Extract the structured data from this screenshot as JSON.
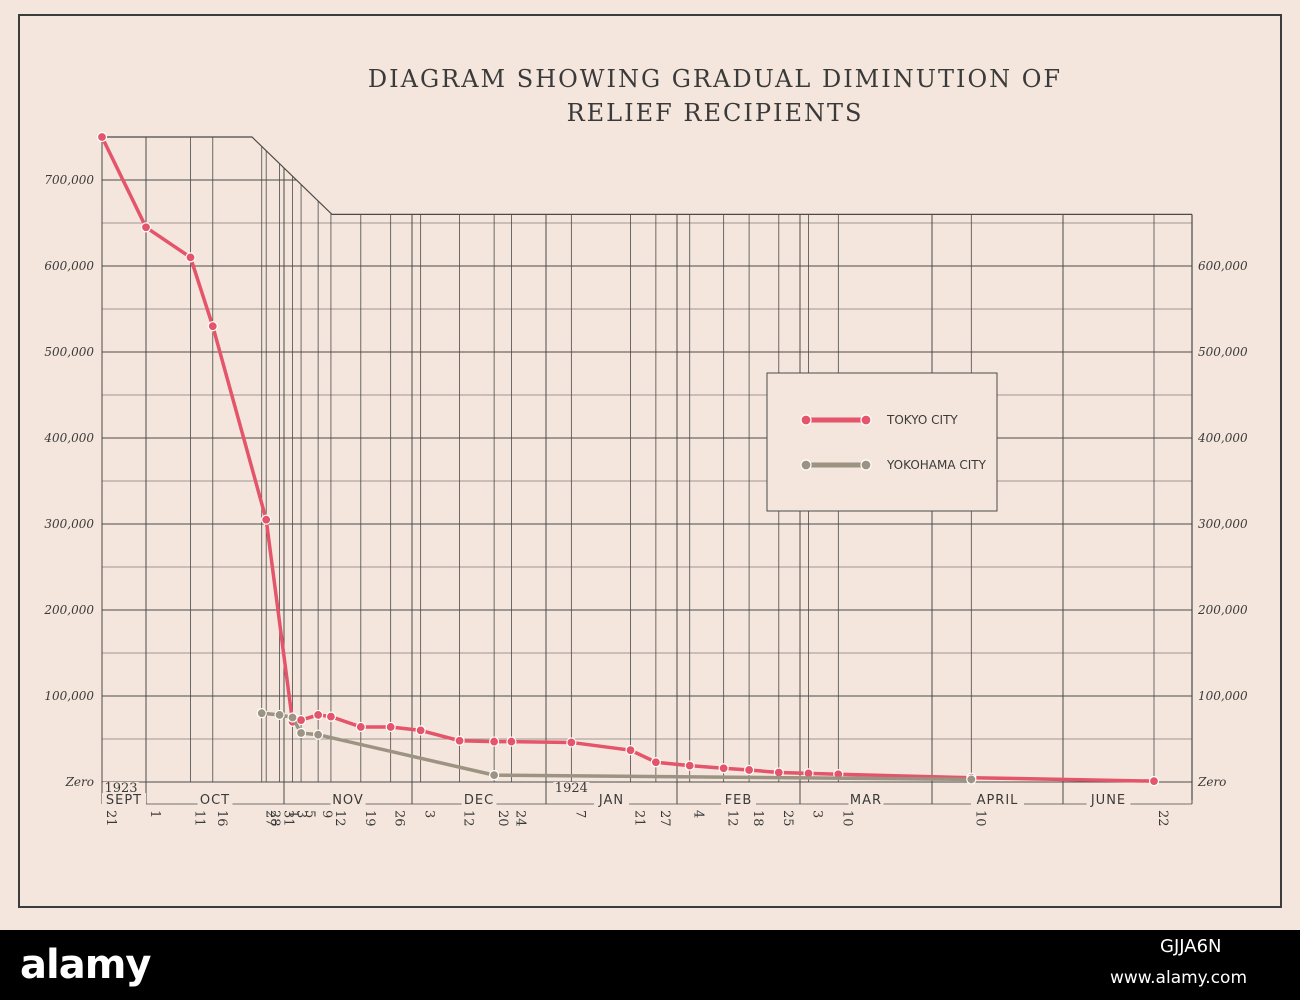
{
  "title_line1": "DIAGRAM SHOWING GRADUAL DIMINUTION OF",
  "title_line2": "RELIEF RECIPIENTS",
  "colors": {
    "tokyo": "#e4546a",
    "yokohama": "#9c9382",
    "grid": "#4a4a4a",
    "paper": "#f4e6dc"
  },
  "watermark": {
    "brand": "alamy",
    "code": "GJJA6N",
    "url": "www.alamy.com"
  },
  "chart_data": {
    "type": "line",
    "title": "DIAGRAM SHOWING GRADUAL DIMINUTION OF RELIEF RECIPIENTS",
    "ylim": [
      0,
      750000
    ],
    "y_ticks": [
      0,
      100000,
      200000,
      300000,
      400000,
      500000,
      600000,
      700000
    ],
    "y_tick_labels_left": [
      "Zero",
      "100,000",
      "200,000",
      "300,000",
      "400,000",
      "500,000",
      "600,000",
      "700,000"
    ],
    "y_tick_labels_right": [
      "Zero",
      "100,000",
      "200,000",
      "300,000",
      "400,000",
      "500,000",
      "600,000"
    ],
    "year_labels": [
      {
        "text": "1923",
        "date": "1923-09-21"
      },
      {
        "text": "1924",
        "date": "1924-01-07"
      }
    ],
    "months": [
      {
        "label": "SEPT",
        "start": "1923-09-21",
        "end": "1923-10-01"
      },
      {
        "label": "OCT",
        "start": "1923-10-01",
        "end": "1923-11-01"
      },
      {
        "label": "NOV",
        "start": "1923-11-01",
        "end": "1923-12-01"
      },
      {
        "label": "DEC",
        "start": "1923-12-01",
        "end": "1924-01-01"
      },
      {
        "label": "JAN",
        "start": "1924-01-01",
        "end": "1924-02-01"
      },
      {
        "label": "FEB",
        "start": "1924-02-01",
        "end": "1924-03-01"
      },
      {
        "label": "MAR",
        "start": "1924-03-01",
        "end": "1924-04-01"
      },
      {
        "label": "APRIL",
        "start": "1924-04-01",
        "end": "1924-05-01"
      },
      {
        "label": "JUNE",
        "start": "1924-05-01",
        "end": "1924-06-22"
      }
    ],
    "date_ticks": [
      {
        "date": "1923-09-21",
        "label": "21"
      },
      {
        "date": "1923-10-01",
        "label": "1"
      },
      {
        "date": "1923-10-11",
        "label": "11"
      },
      {
        "date": "1923-10-16",
        "label": "16"
      },
      {
        "date": "1923-10-27",
        "label": "27"
      },
      {
        "date": "1923-10-28",
        "label": "28"
      },
      {
        "date": "1923-10-31",
        "label": "31"
      },
      {
        "date": "1923-11-01",
        "label": "1"
      },
      {
        "date": "1923-11-03",
        "label": "3"
      },
      {
        "date": "1923-11-05",
        "label": "5"
      },
      {
        "date": "1923-11-09",
        "label": "9"
      },
      {
        "date": "1923-11-12",
        "label": "12"
      },
      {
        "date": "1923-11-19",
        "label": "19"
      },
      {
        "date": "1923-11-26",
        "label": "26"
      },
      {
        "date": "1923-12-03",
        "label": "3"
      },
      {
        "date": "1923-12-12",
        "label": "12"
      },
      {
        "date": "1923-12-20",
        "label": "20"
      },
      {
        "date": "1923-12-24",
        "label": "24"
      },
      {
        "date": "1924-01-07",
        "label": "7"
      },
      {
        "date": "1924-01-21",
        "label": "21"
      },
      {
        "date": "1924-01-27",
        "label": "27"
      },
      {
        "date": "1924-02-04",
        "label": "4"
      },
      {
        "date": "1924-02-12",
        "label": "12"
      },
      {
        "date": "1924-02-18",
        "label": "18"
      },
      {
        "date": "1924-02-25",
        "label": "25"
      },
      {
        "date": "1924-03-03",
        "label": "3"
      },
      {
        "date": "1924-03-10",
        "label": "10"
      },
      {
        "date": "1924-04-10",
        "label": "10"
      },
      {
        "date": "1924-06-22",
        "label": "22"
      }
    ],
    "series": [
      {
        "name": "TOKYO CITY",
        "color": "#e4546a",
        "points": [
          {
            "date": "1923-09-21",
            "value": 750000
          },
          {
            "date": "1923-10-01",
            "value": 645000
          },
          {
            "date": "1923-10-11",
            "value": 610000
          },
          {
            "date": "1923-10-16",
            "value": 530000
          },
          {
            "date": "1923-10-28",
            "value": 305000
          },
          {
            "date": "1923-11-03",
            "value": 70000
          },
          {
            "date": "1923-11-05",
            "value": 72000
          },
          {
            "date": "1923-11-09",
            "value": 78000
          },
          {
            "date": "1923-11-12",
            "value": 76000
          },
          {
            "date": "1923-11-19",
            "value": 64000
          },
          {
            "date": "1923-11-26",
            "value": 64000
          },
          {
            "date": "1923-12-03",
            "value": 60000
          },
          {
            "date": "1923-12-12",
            "value": 48000
          },
          {
            "date": "1923-12-20",
            "value": 47000
          },
          {
            "date": "1923-12-24",
            "value": 47000
          },
          {
            "date": "1924-01-07",
            "value": 46000
          },
          {
            "date": "1924-01-21",
            "value": 37000
          },
          {
            "date": "1924-01-27",
            "value": 23000
          },
          {
            "date": "1924-02-04",
            "value": 19000
          },
          {
            "date": "1924-02-12",
            "value": 16000
          },
          {
            "date": "1924-02-18",
            "value": 14000
          },
          {
            "date": "1924-02-25",
            "value": 11000
          },
          {
            "date": "1924-03-03",
            "value": 10000
          },
          {
            "date": "1924-03-10",
            "value": 9000
          },
          {
            "date": "1924-04-10",
            "value": 5000
          },
          {
            "date": "1924-06-22",
            "value": 1000
          }
        ]
      },
      {
        "name": "YOKOHAMA CITY",
        "color": "#9c9382",
        "points": [
          {
            "date": "1923-10-27",
            "value": 80000
          },
          {
            "date": "1923-10-31",
            "value": 78000
          },
          {
            "date": "1923-11-03",
            "value": 75000
          },
          {
            "date": "1923-11-05",
            "value": 57000
          },
          {
            "date": "1923-11-09",
            "value": 55000
          },
          {
            "date": "1923-12-20",
            "value": 8000
          },
          {
            "date": "1924-04-10",
            "value": 3000
          }
        ]
      }
    ],
    "legend": {
      "position": "center-right",
      "entries": [
        "TOKYO CITY",
        "YOKOHAMA CITY"
      ]
    },
    "grid": true
  }
}
